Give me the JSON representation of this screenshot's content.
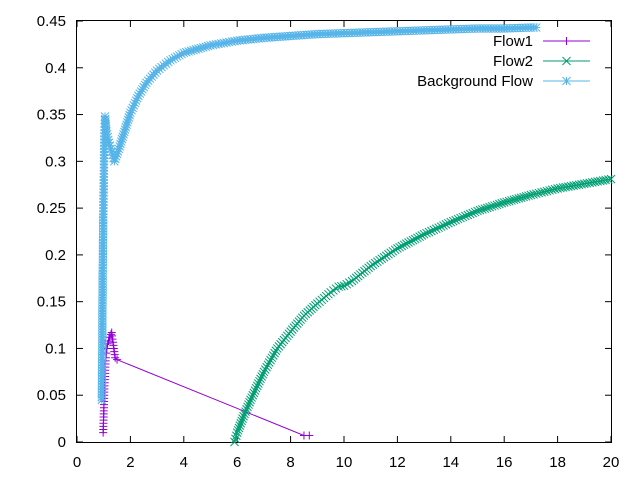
{
  "chart_data": {
    "type": "line",
    "title": "",
    "xlabel": "",
    "ylabel": "",
    "xlim": [
      0,
      20
    ],
    "ylim": [
      0,
      0.45
    ],
    "x_ticks": [
      0,
      2,
      4,
      6,
      8,
      10,
      12,
      14,
      16,
      18,
      20
    ],
    "y_ticks": [
      0,
      0.05,
      0.1,
      0.15,
      0.2,
      0.25,
      0.3,
      0.35,
      0.4,
      0.45
    ],
    "x_tick_labels": [
      "0",
      "2",
      "4",
      "6",
      "8",
      "10",
      "12",
      "14",
      "16",
      "18",
      "20"
    ],
    "y_tick_labels": [
      "0",
      "0.05",
      "0.1",
      "0.15",
      "0.2",
      "0.25",
      "0.3",
      "0.35",
      "0.4",
      "0.45"
    ],
    "grid": false,
    "legend_position": "top-right",
    "series": [
      {
        "name": "Flow1",
        "color": "#9400d3",
        "marker": "plus",
        "points": [
          [
            0.98,
            0.01
          ],
          [
            0.99,
            0.02
          ],
          [
            1.0,
            0.03
          ],
          [
            1.01,
            0.04
          ],
          [
            1.02,
            0.05
          ],
          [
            1.03,
            0.06
          ],
          [
            1.05,
            0.07
          ],
          [
            1.06,
            0.08
          ],
          [
            1.08,
            0.09
          ],
          [
            1.1,
            0.095
          ],
          [
            1.12,
            0.1
          ],
          [
            1.15,
            0.105
          ],
          [
            1.18,
            0.108
          ],
          [
            1.22,
            0.112
          ],
          [
            1.27,
            0.115
          ],
          [
            1.3,
            0.117
          ],
          [
            1.33,
            0.11
          ],
          [
            1.38,
            0.1
          ],
          [
            1.43,
            0.09
          ],
          [
            1.5,
            0.088
          ],
          [
            8.5,
            0.007
          ],
          [
            8.7,
            0.007
          ]
        ]
      },
      {
        "name": "Flow2",
        "color": "#009e73",
        "marker": "cross",
        "points": [
          [
            5.9,
            0.0
          ],
          [
            6.0,
            0.01
          ],
          [
            6.2,
            0.025
          ],
          [
            6.5,
            0.045
          ],
          [
            7.0,
            0.075
          ],
          [
            7.5,
            0.1
          ],
          [
            8.0,
            0.118
          ],
          [
            8.5,
            0.135
          ],
          [
            9.0,
            0.148
          ],
          [
            9.5,
            0.16
          ],
          [
            9.8,
            0.166
          ],
          [
            10.0,
            0.167
          ],
          [
            10.3,
            0.172
          ],
          [
            11.0,
            0.188
          ],
          [
            12.0,
            0.207
          ],
          [
            13.0,
            0.222
          ],
          [
            14.0,
            0.235
          ],
          [
            15.0,
            0.247
          ],
          [
            16.0,
            0.256
          ],
          [
            17.0,
            0.264
          ],
          [
            18.0,
            0.271
          ],
          [
            19.0,
            0.276
          ],
          [
            20.0,
            0.281
          ]
        ]
      },
      {
        "name": "Background Flow",
        "color": "#56b4e9",
        "marker": "star",
        "points": [
          [
            0.93,
            0.045
          ],
          [
            0.94,
            0.085
          ],
          [
            0.95,
            0.115
          ],
          [
            0.95,
            0.14
          ],
          [
            0.96,
            0.16
          ],
          [
            0.96,
            0.18
          ],
          [
            0.97,
            0.195
          ],
          [
            0.97,
            0.21
          ],
          [
            0.98,
            0.225
          ],
          [
            0.98,
            0.24
          ],
          [
            0.99,
            0.25
          ],
          [
            0.99,
            0.26
          ],
          [
            1.0,
            0.27
          ],
          [
            1.0,
            0.28
          ],
          [
            1.01,
            0.29
          ],
          [
            1.01,
            0.3
          ],
          [
            1.02,
            0.31
          ],
          [
            1.02,
            0.32
          ],
          [
            1.03,
            0.33
          ],
          [
            1.04,
            0.34
          ],
          [
            1.05,
            0.348
          ],
          [
            1.1,
            0.332
          ],
          [
            1.2,
            0.32
          ],
          [
            1.3,
            0.31
          ],
          [
            1.4,
            0.3
          ],
          [
            1.5,
            0.308
          ],
          [
            1.6,
            0.316
          ],
          [
            1.8,
            0.334
          ],
          [
            2.0,
            0.352
          ],
          [
            2.3,
            0.37
          ],
          [
            2.6,
            0.384
          ],
          [
            3.0,
            0.397
          ],
          [
            3.5,
            0.408
          ],
          [
            4.0,
            0.416
          ],
          [
            5.0,
            0.424
          ],
          [
            6.0,
            0.429
          ],
          [
            7.0,
            0.432
          ],
          [
            8.0,
            0.434
          ],
          [
            9.0,
            0.436
          ],
          [
            10.0,
            0.437
          ],
          [
            11.0,
            0.438
          ],
          [
            12.0,
            0.439
          ],
          [
            13.0,
            0.44
          ],
          [
            14.0,
            0.441
          ],
          [
            15.0,
            0.442
          ],
          [
            16.0,
            0.442
          ],
          [
            17.0,
            0.443
          ],
          [
            17.2,
            0.443
          ]
        ]
      }
    ]
  }
}
